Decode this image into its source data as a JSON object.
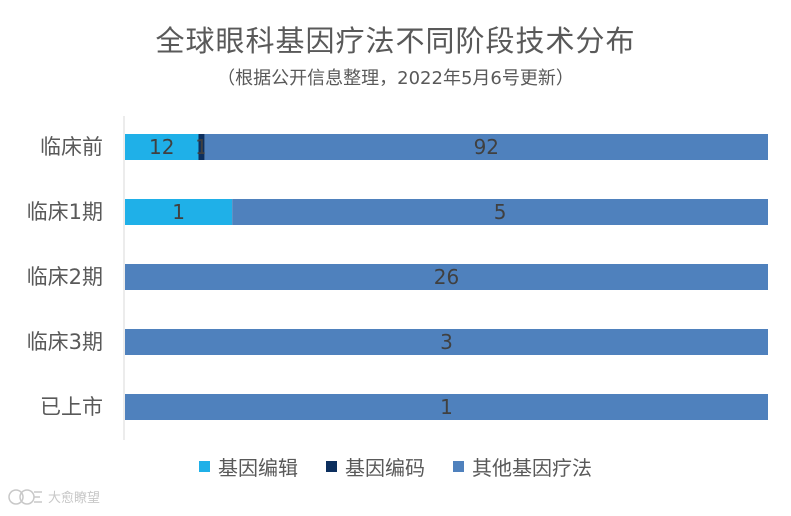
{
  "chart_data": {
    "type": "bar",
    "orientation": "horizontal",
    "stacked": "percent",
    "title": "全球眼科基因疗法不同阶段技术分布",
    "subtitle": "（根据公开信息整理，2022年5月6号更新）",
    "categories": [
      "临床前",
      "临床1期",
      "临床2期",
      "临床3期",
      "已上市"
    ],
    "series": [
      {
        "name": "基因编辑",
        "values": [
          12,
          1,
          0,
          0,
          0
        ],
        "color": "#1FB0E8"
      },
      {
        "name": "基因编码",
        "values": [
          1,
          0,
          0,
          0,
          0
        ],
        "color": "#0C2F5E"
      },
      {
        "name": "其他基因疗法",
        "values": [
          92,
          5,
          26,
          3,
          1
        ],
        "color": "#4F81BD"
      }
    ],
    "legend_position": "bottom",
    "grid": false
  },
  "watermark": {
    "text": "大愈瞭望"
  }
}
